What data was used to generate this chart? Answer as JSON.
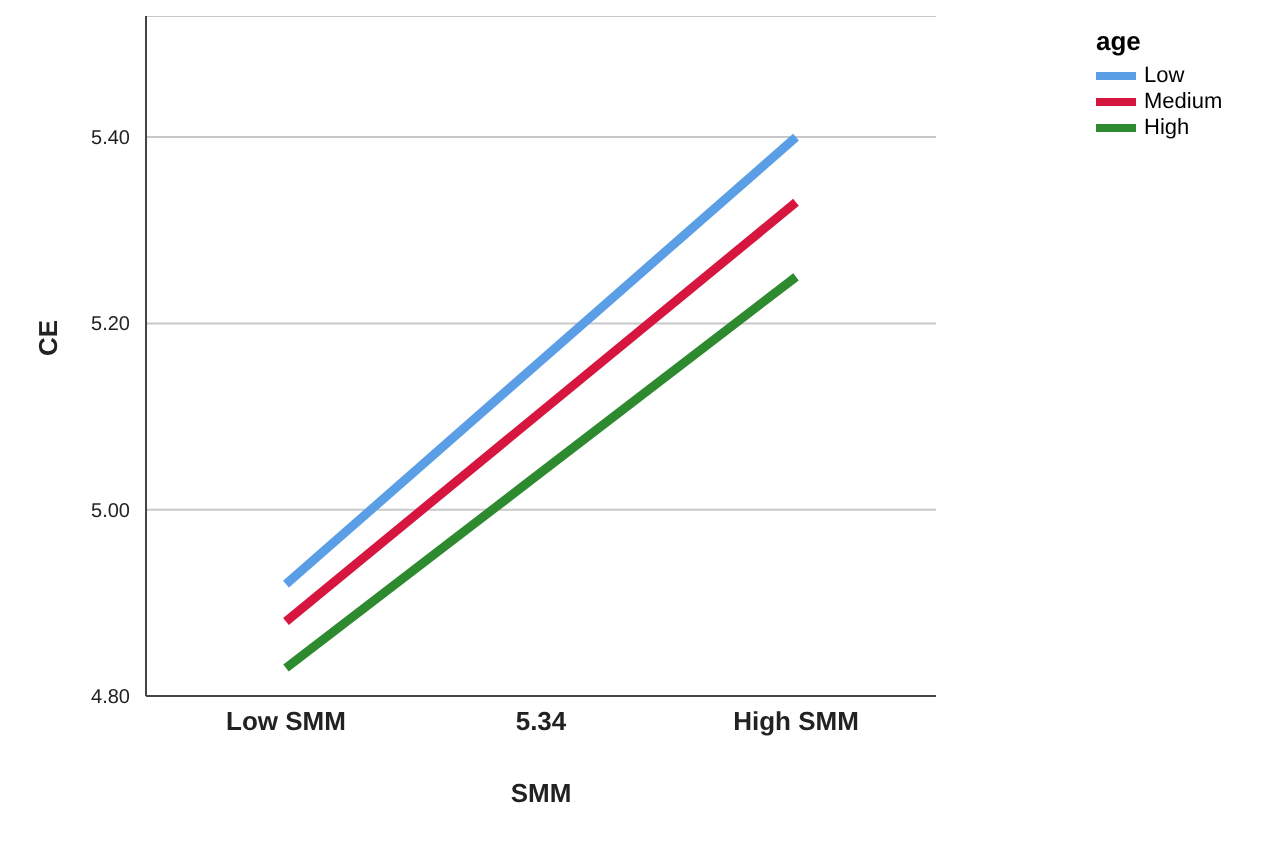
{
  "chart_data": {
    "type": "line",
    "xlabel": "SMM",
    "ylabel": "CE",
    "legend_title": "age",
    "categories": [
      "Low SMM",
      "5.34",
      "High SMM"
    ],
    "series": [
      {
        "name": "Low",
        "color": "#5a9ee6",
        "values": [
          4.92,
          5.16,
          5.4
        ]
      },
      {
        "name": "Medium",
        "color": "#d6163e",
        "values": [
          4.88,
          5.105,
          5.33
        ]
      },
      {
        "name": "High",
        "color": "#2e8a2e",
        "values": [
          4.83,
          5.04,
          5.25
        ]
      }
    ],
    "ylim": [
      4.8,
      5.53
    ],
    "yticks": [
      {
        "value": 4.8,
        "label": "4.80"
      },
      {
        "value": 5.0,
        "label": "5.00"
      },
      {
        "value": 5.2,
        "label": "5.20"
      },
      {
        "value": 5.4,
        "label": "5.40"
      }
    ],
    "grid": "y",
    "legend": "top right",
    "marker": "none",
    "line_style": "solid"
  }
}
